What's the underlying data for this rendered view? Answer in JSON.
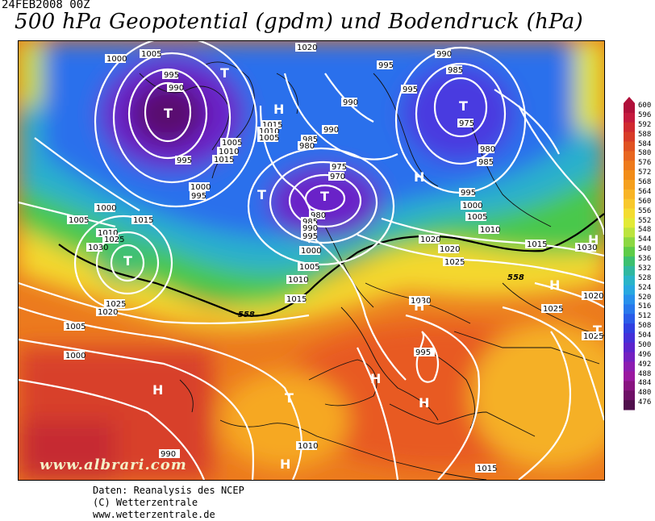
{
  "header": {
    "date": "24FEB2008 00Z",
    "title": "500 hPa Geopotential (gpdm) und Bodendruck (hPa)"
  },
  "map": {
    "watermark": "www.albrari.com",
    "contour_558_label": "558",
    "isobar_labels": [
      "1000",
      "1005",
      "995",
      "990",
      "995",
      "1005",
      "1010",
      "1015",
      "1000",
      "995",
      "1020",
      "995",
      "1015",
      "1010",
      "1005",
      "990",
      "985",
      "980",
      "975",
      "970",
      "980",
      "985",
      "990",
      "995",
      "1000",
      "1005",
      "1010",
      "1015",
      "1020",
      "985",
      "990",
      "995",
      "1000",
      "1005",
      "1010",
      "1015",
      "1020",
      "1025",
      "1030",
      "1025",
      "1020",
      "1030",
      "975",
      "980",
      "985",
      "990",
      "995",
      "1000",
      "1005",
      "1010",
      "1015",
      "1025",
      "1030",
      "1025",
      "1020",
      "1005",
      "1000",
      "995",
      "990",
      "1010",
      "1015",
      "1020",
      "1025",
      "1025"
    ],
    "pressure_systems": [
      {
        "label": "T"
      },
      {
        "label": "T"
      },
      {
        "label": "H"
      },
      {
        "label": "T"
      },
      {
        "label": "T"
      },
      {
        "label": "T"
      },
      {
        "label": "H"
      },
      {
        "label": "T"
      },
      {
        "label": "H"
      },
      {
        "label": "H"
      },
      {
        "label": "H"
      },
      {
        "label": "T"
      },
      {
        "label": "H"
      },
      {
        "label": "H"
      },
      {
        "label": "H"
      },
      {
        "label": "H"
      },
      {
        "label": "T"
      }
    ]
  },
  "colorbar": {
    "values": [
      600,
      596,
      592,
      588,
      584,
      580,
      576,
      572,
      568,
      564,
      560,
      556,
      552,
      548,
      544,
      540,
      536,
      532,
      528,
      524,
      520,
      516,
      512,
      508,
      504,
      500,
      496,
      492,
      488,
      484,
      480,
      476
    ],
    "colors": [
      "#b0103a",
      "#c41a3e",
      "#d02a30",
      "#d83c28",
      "#e05222",
      "#e86620",
      "#ee7a1c",
      "#f28c18",
      "#f5a01e",
      "#f8b426",
      "#f8c82c",
      "#f4dc30",
      "#e2ea36",
      "#bce43e",
      "#8cd842",
      "#5ecc48",
      "#3cc070",
      "#30b8a0",
      "#2ab4c8",
      "#28a8e0",
      "#2890ec",
      "#2878ec",
      "#2a5ce8",
      "#3040e0",
      "#4430d8",
      "#5c24cc",
      "#7420c0",
      "#8c1cb0",
      "#9a18a0",
      "#881480",
      "#6e1066",
      "#50104c"
    ]
  },
  "footer": {
    "line1": "Daten: Reanalysis des NCEP",
    "line2": "(C) Wetterzentrale",
    "line3": "www.wetterzentrale.de"
  }
}
